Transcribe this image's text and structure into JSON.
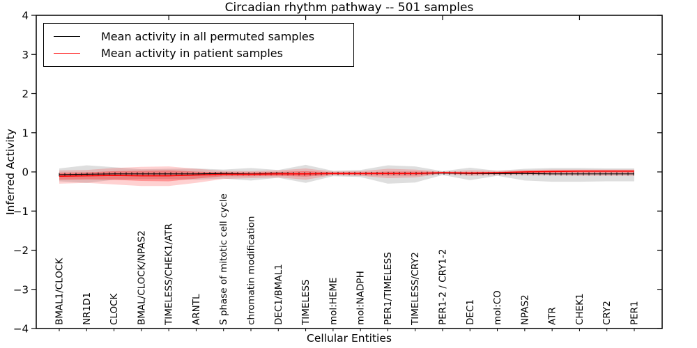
{
  "title": "Circadian rhythm pathway -- 501 samples",
  "xlabel": "Cellular Entities",
  "ylabel": "Inferred Activity",
  "legend": [
    {
      "label": "Mean activity in all permuted samples",
      "color": "#000000"
    },
    {
      "label": "Mean activity in patient samples",
      "color": "#ff0000"
    }
  ],
  "chart_data": {
    "type": "line",
    "title": "Circadian rhythm pathway -- 501 samples",
    "xlabel": "Cellular Entities",
    "ylabel": "Inferred Activity",
    "ylim": [
      -4,
      4
    ],
    "yticks": [
      4,
      3,
      2,
      1,
      0,
      -1,
      -2,
      -3,
      -4
    ],
    "grid": false,
    "legend_position": "upper left",
    "categories": [
      "BMAL1/CLOCK",
      "NR1D1",
      "CLOCK",
      "BMAL/CLOCK/NPAS2",
      "TIMELESS/CHEK1/ATR",
      "ARNTL",
      "S phase of mitotic cell cycle",
      "chromatin modification",
      "DEC1/BMAL1",
      "TIMELESS",
      "mol:HEME",
      "mol:NADPH",
      "PER1/TIMELESS",
      "TIMELESS/CRY2",
      "PER1-2 / CRY1-2",
      "DEC1",
      "mol:CO",
      "NPAS2",
      "ATR",
      "CHEK1",
      "CRY2",
      "PER1"
    ],
    "series": [
      {
        "name": "Mean activity in all permuted samples",
        "color": "#000000",
        "values": [
          -0.07,
          -0.06,
          -0.05,
          -0.05,
          -0.05,
          -0.05,
          -0.04,
          -0.05,
          -0.04,
          -0.05,
          -0.04,
          -0.04,
          -0.04,
          -0.04,
          -0.03,
          -0.04,
          -0.04,
          -0.04,
          -0.05,
          -0.05,
          -0.05,
          -0.05
        ]
      },
      {
        "name": "Mean activity in patient samples",
        "color": "#ff0000",
        "values": [
          -0.11,
          -0.1,
          -0.09,
          -0.1,
          -0.1,
          -0.08,
          -0.06,
          -0.06,
          -0.05,
          -0.05,
          -0.04,
          -0.04,
          -0.04,
          -0.04,
          -0.02,
          -0.03,
          -0.02,
          0.0,
          0.01,
          0.02,
          0.02,
          0.02
        ]
      }
    ],
    "bands": [
      {
        "name": "permuted-samples-range",
        "color": "rgba(0,0,0,0.13)",
        "upper": [
          0.09,
          0.17,
          0.12,
          0.07,
          0.08,
          0.09,
          0.06,
          0.1,
          0.05,
          0.18,
          0.03,
          0.05,
          0.17,
          0.14,
          0.02,
          0.11,
          0.03,
          0.08,
          0.1,
          0.1,
          0.09,
          0.09
        ],
        "lower": [
          -0.24,
          -0.28,
          -0.2,
          -0.18,
          -0.18,
          -0.2,
          -0.17,
          -0.22,
          -0.15,
          -0.28,
          -0.11,
          -0.13,
          -0.3,
          -0.27,
          -0.08,
          -0.21,
          -0.1,
          -0.22,
          -0.25,
          -0.25,
          -0.24,
          -0.24
        ]
      },
      {
        "name": "patient-samples-range-outer",
        "color": "rgba(255,0,0,0.18)",
        "upper": [
          0.04,
          0.05,
          0.1,
          0.13,
          0.14,
          0.08,
          0.03,
          0.02,
          0.04,
          0.09,
          0.01,
          0.02,
          0.08,
          0.06,
          0.01,
          0.04,
          0.03,
          0.05,
          0.06,
          0.06,
          0.06,
          0.06
        ],
        "lower": [
          -0.3,
          -0.28,
          -0.32,
          -0.36,
          -0.36,
          -0.28,
          -0.18,
          -0.16,
          -0.14,
          -0.2,
          -0.08,
          -0.1,
          -0.16,
          -0.14,
          -0.05,
          -0.1,
          -0.08,
          -0.08,
          -0.09,
          -0.1,
          -0.1,
          -0.1
        ]
      },
      {
        "name": "patient-samples-range-inner",
        "color": "rgba(255,0,0,0.30)",
        "upper": [
          -0.02,
          -0.01,
          0.02,
          0.03,
          0.04,
          0.01,
          -0.01,
          -0.01,
          0.0,
          0.02,
          -0.01,
          -0.01,
          0.01,
          0.01,
          0.0,
          0.0,
          0.0,
          0.03,
          0.04,
          0.04,
          0.04,
          0.04
        ],
        "lower": [
          -0.2,
          -0.19,
          -0.2,
          -0.23,
          -0.24,
          -0.17,
          -0.11,
          -0.11,
          -0.1,
          -0.12,
          -0.07,
          -0.08,
          -0.09,
          -0.09,
          -0.04,
          -0.06,
          -0.05,
          -0.03,
          -0.02,
          -0.02,
          -0.02,
          -0.02
        ]
      }
    ]
  }
}
